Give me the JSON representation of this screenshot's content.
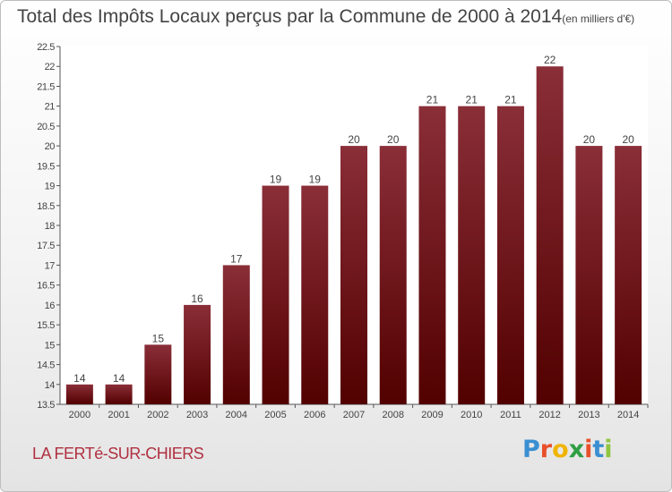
{
  "chart_data": {
    "type": "bar",
    "title": "Total des Impôts Locaux perçus par la Commune de 2000 à 2014",
    "subtitle": "(en milliers d'€)",
    "categories": [
      "2000",
      "2001",
      "2002",
      "2003",
      "2004",
      "2005",
      "2006",
      "2007",
      "2008",
      "2009",
      "2010",
      "2011",
      "2012",
      "2013",
      "2014"
    ],
    "values": [
      14,
      14,
      15,
      16,
      17,
      19,
      19,
      20,
      20,
      21,
      21,
      21,
      22,
      20,
      20
    ],
    "value_labels": [
      "14",
      "14",
      "15",
      "16",
      "17",
      "19",
      "19",
      "20",
      "20",
      "21",
      "21",
      "21",
      "22",
      "20",
      "20"
    ],
    "ylim": [
      13.5,
      22.5
    ],
    "yticks": [
      13.5,
      14,
      14.5,
      15,
      15.5,
      16,
      16.5,
      17,
      17.5,
      18,
      18.5,
      19,
      19.5,
      20,
      20.5,
      21,
      21.5,
      22,
      22.5
    ],
    "ytick_labels": [
      "13.5",
      "14",
      "14.5",
      "15",
      "15.5",
      "16",
      "16.5",
      "17",
      "17.5",
      "18",
      "18.5",
      "19",
      "19.5",
      "20",
      "20.5",
      "21",
      "21.5",
      "22",
      "22.5"
    ],
    "xlabel": "",
    "ylabel": "",
    "grid": false,
    "bar_color_top": "#8a2e38",
    "bar_color_bottom": "#520000"
  },
  "footer": {
    "commune": "LA FERTé-SUR-CHIERS",
    "brand_letters": [
      "P",
      "r",
      "o",
      "x",
      "i",
      "t",
      "i"
    ],
    "brand_colors": [
      "#3a8fd1",
      "#e8502a",
      "#f0b400",
      "#2f9e44",
      "#e8502a",
      "#3a8fd1",
      "#8fc63f"
    ]
  }
}
